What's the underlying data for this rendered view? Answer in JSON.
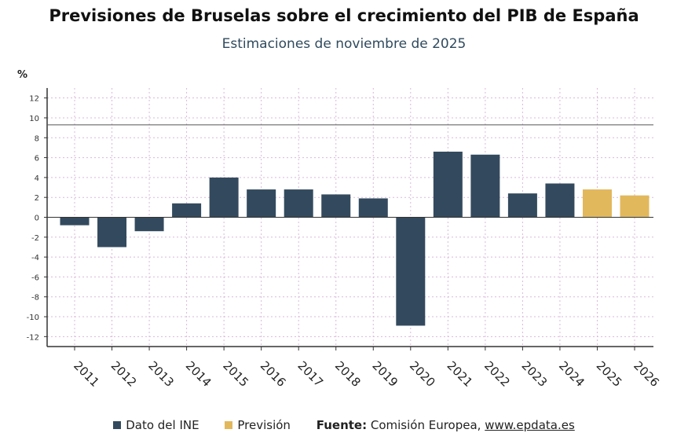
{
  "title": "Previsiones de Bruselas sobre el crecimiento del PIB de España",
  "subtitle": "Estimaciones de noviembre de 2025",
  "legend": {
    "items": [
      {
        "label": "Dato del INE",
        "color": "#334a5e"
      },
      {
        "label": "Previsión",
        "color": "#e2b85c"
      }
    ],
    "source_label": "Fuente:",
    "source_text": "Comisión Europea,",
    "source_link": "www.epdata.es"
  },
  "chart_data": {
    "type": "bar",
    "title": "Previsiones de Bruselas sobre el crecimiento del PIB de España",
    "subtitle": "Estimaciones de noviembre de 2025",
    "ylabel": "%",
    "xlabel": "",
    "ylim": [
      -13,
      13
    ],
    "yticks": [
      12,
      10,
      8,
      6,
      4,
      2,
      0,
      -2,
      -4,
      -6,
      -8,
      -10,
      -12
    ],
    "grid": true,
    "reference_line": 9.3,
    "categories": [
      "2011",
      "2012",
      "2013",
      "2014",
      "2015",
      "2016",
      "2017",
      "2018",
      "2019",
      "2020",
      "2021",
      "2022",
      "2023",
      "2024",
      "2025",
      "2026"
    ],
    "values": [
      -0.8,
      -3.0,
      -1.4,
      1.4,
      4.0,
      2.8,
      2.8,
      2.3,
      1.9,
      -10.9,
      6.6,
      6.3,
      2.4,
      3.4,
      2.8,
      2.2
    ],
    "series_type": [
      "Dato del INE",
      "Dato del INE",
      "Dato del INE",
      "Dato del INE",
      "Dato del INE",
      "Dato del INE",
      "Dato del INE",
      "Dato del INE",
      "Dato del INE",
      "Dato del INE",
      "Dato del INE",
      "Dato del INE",
      "Dato del INE",
      "Dato del INE",
      "Previsión",
      "Previsión"
    ],
    "colors": {
      "Dato del INE": "#334a5e",
      "Previsión": "#e2b85c"
    },
    "legend_position": "bottom"
  }
}
